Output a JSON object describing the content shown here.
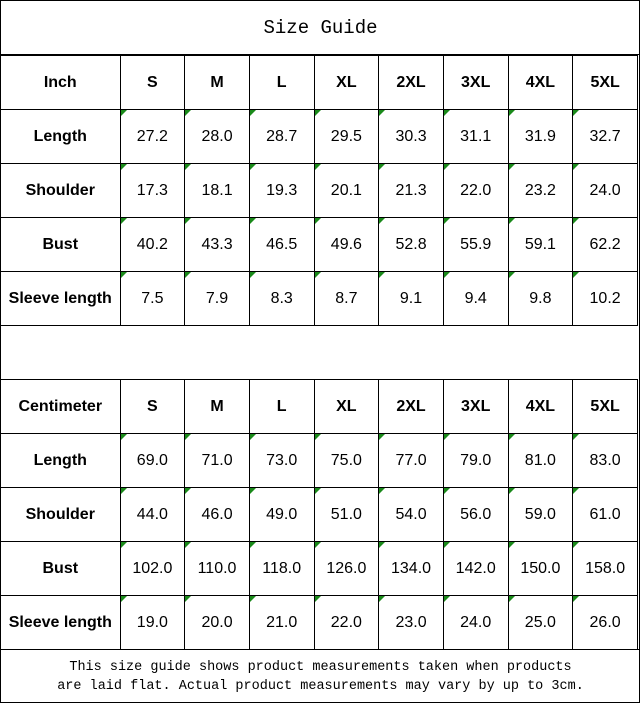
{
  "title": "Size Guide",
  "sizes": [
    "S",
    "M",
    "L",
    "XL",
    "2XL",
    "3XL",
    "4XL",
    "5XL"
  ],
  "indicator_color": "#1a8a1a",
  "tables": [
    {
      "unit": "Inch",
      "rows": [
        {
          "label": "Length",
          "values": [
            "27.2",
            "28.0",
            "28.7",
            "29.5",
            "30.3",
            "31.1",
            "31.9",
            "32.7"
          ]
        },
        {
          "label": "Shoulder",
          "values": [
            "17.3",
            "18.1",
            "19.3",
            "20.1",
            "21.3",
            "22.0",
            "23.2",
            "24.0"
          ]
        },
        {
          "label": "Bust",
          "values": [
            "40.2",
            "43.3",
            "46.5",
            "49.6",
            "52.8",
            "55.9",
            "59.1",
            "62.2"
          ]
        },
        {
          "label": "Sleeve length",
          "values": [
            "7.5",
            "7.9",
            "8.3",
            "8.7",
            "9.1",
            "9.4",
            "9.8",
            "10.2"
          ]
        }
      ]
    },
    {
      "unit": "Centimeter",
      "rows": [
        {
          "label": "Length",
          "values": [
            "69.0",
            "71.0",
            "73.0",
            "75.0",
            "77.0",
            "79.0",
            "81.0",
            "83.0"
          ]
        },
        {
          "label": "Shoulder",
          "values": [
            "44.0",
            "46.0",
            "49.0",
            "51.0",
            "54.0",
            "56.0",
            "59.0",
            "61.0"
          ]
        },
        {
          "label": "Bust",
          "values": [
            "102.0",
            "110.0",
            "118.0",
            "126.0",
            "134.0",
            "142.0",
            "150.0",
            "158.0"
          ]
        },
        {
          "label": "Sleeve length",
          "values": [
            "19.0",
            "20.0",
            "21.0",
            "22.0",
            "23.0",
            "24.0",
            "25.0",
            "26.0"
          ]
        }
      ]
    }
  ],
  "footer": {
    "line1": "This size guide shows product measurements taken when products",
    "line2": "are laid flat. Actual product measurements may vary by up to 3cm."
  }
}
